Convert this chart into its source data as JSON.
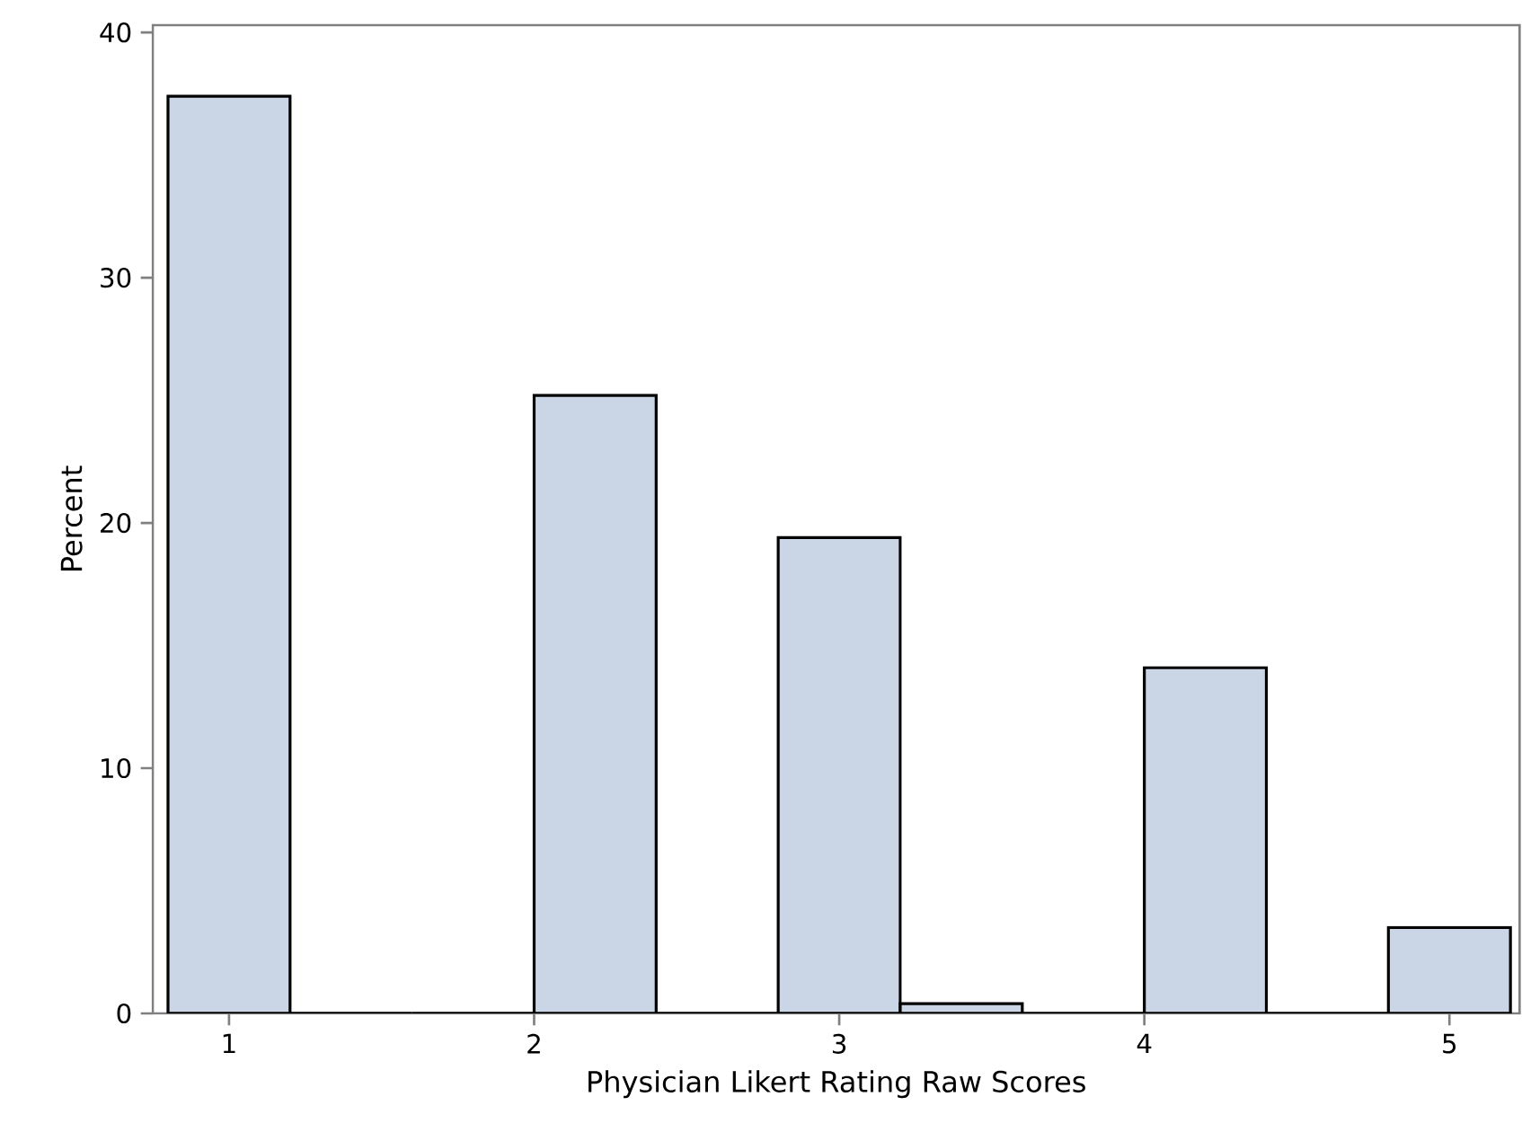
{
  "chart_data": {
    "type": "histogram",
    "xlabel": "Physician Likert Rating Raw Scores",
    "ylabel": "Percent",
    "bins": [
      0.8,
      1.2,
      1.6,
      2.0,
      2.4,
      2.8,
      3.2,
      3.6,
      4.0,
      4.4,
      4.8,
      5.2
    ],
    "values": [
      37.4,
      0,
      0,
      25.2,
      0,
      19.4,
      0.4,
      0,
      14.1,
      0,
      3.5
    ],
    "color": "#cad5e5",
    "xlim": [
      0.75,
      5.23
    ],
    "ylim": [
      0,
      40.3
    ],
    "xticks": [
      1,
      2,
      3,
      4,
      5
    ],
    "yticks": [
      0,
      10,
      20,
      30,
      40
    ]
  }
}
